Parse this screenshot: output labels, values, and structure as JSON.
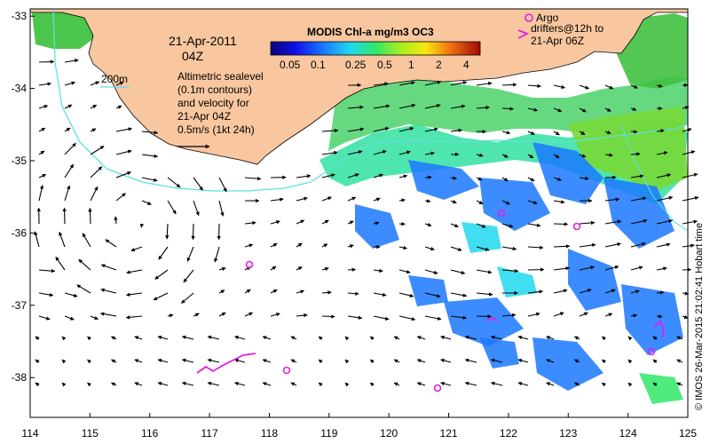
{
  "date_line1": "21-Apr-2011",
  "date_line2": "04Z",
  "contour_label": "200m",
  "description": [
    "Altimetric sealevel",
    "(0.1m contours)",
    "and velocity for",
    "21-Apr 04Z",
    "0.5m/s (1kt 24h)"
  ],
  "colorbar": {
    "title": "MODIS Chl-a mg/m3 OC3",
    "ticks": [
      "0.05",
      "0.1",
      "0.25",
      "0.5",
      "1",
      "2",
      "4"
    ]
  },
  "argo_legend": "Argo",
  "drifter_legend": [
    "drifters@12h to",
    "21-Apr 06Z"
  ],
  "credit": "© IMOS 26-Mar-2015 21:02:41 Hobart time",
  "axes": {
    "x_ticks": [
      "114",
      "115",
      "116",
      "117",
      "118",
      "119",
      "120",
      "121",
      "122",
      "123",
      "124",
      "125"
    ],
    "y_ticks": [
      "-33",
      "-34",
      "-35",
      "-36",
      "-37",
      "-38"
    ],
    "xlim": [
      114,
      125
    ],
    "ylim": [
      -38.55,
      -32.9
    ]
  },
  "colors": {
    "land": "#f8c79f",
    "coast_contour": "#5ee0e0",
    "argo": "#e020e0",
    "vector": "#000000"
  }
}
